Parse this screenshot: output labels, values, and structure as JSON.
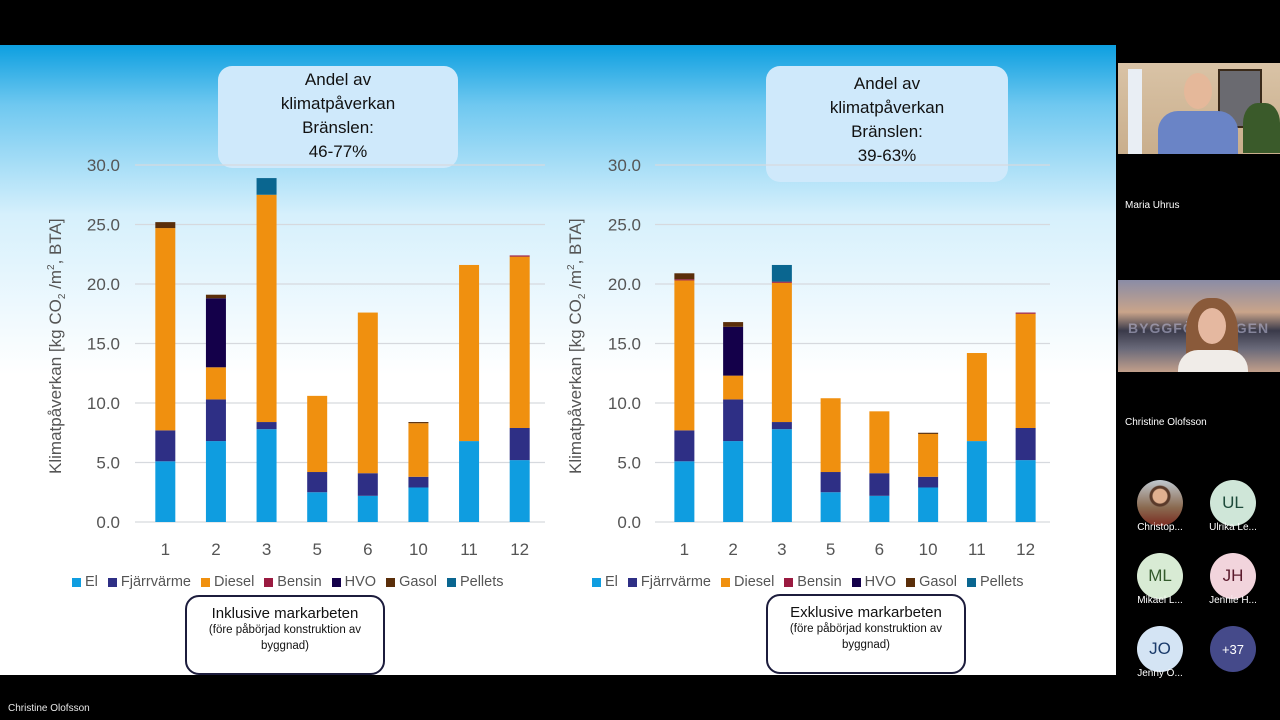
{
  "presenter_name": "Christine Olofsson",
  "legend_colors": {
    "El": "#0f9de0",
    "Fjärrvärme": "#2e2f85",
    "Diesel": "#f0900f",
    "Bensin": "#9a1a40",
    "HVO": "#14004a",
    "Gasol": "#5a2e0a",
    "Pellets": "#0a6690"
  },
  "left_panel": {
    "callout": [
      "Andel av",
      "klimatpåverkan",
      "Bränslen:",
      "46-77%"
    ],
    "note_title": "Inklusive markarbeten",
    "note_sub": [
      "(före påbörjad konstruktion av",
      "byggnad)"
    ]
  },
  "right_panel": {
    "callout": [
      "Andel av",
      "klimatpåverkan",
      "Bränslen:",
      "39-63%"
    ],
    "note_title": "Exklusive markarbeten",
    "note_sub": [
      "(före påbörjad konstruktion av",
      "byggnad)"
    ]
  },
  "chart_data": [
    {
      "type": "bar",
      "stacked": true,
      "title": "Inklusive markarbeten",
      "xlabel": "",
      "ylabel": "Klimatpåverkan [kg CO2 /m2, BTA]",
      "ylim": [
        0,
        30
      ],
      "yticks": [
        "0.0",
        "5.0",
        "10.0",
        "15.0",
        "20.0",
        "25.0",
        "30.0"
      ],
      "grid": true,
      "legend": "bottom",
      "categories": [
        "1",
        "2",
        "3",
        "5",
        "6",
        "10",
        "11",
        "12"
      ],
      "series": [
        {
          "name": "El",
          "values": [
            5.1,
            6.8,
            7.8,
            2.5,
            2.2,
            2.9,
            6.8,
            5.2
          ]
        },
        {
          "name": "Fjärrvärme",
          "values": [
            2.6,
            3.5,
            0.6,
            1.7,
            1.9,
            0.9,
            0,
            2.7
          ]
        },
        {
          "name": "Diesel",
          "values": [
            17.0,
            2.7,
            19.1,
            6.4,
            13.5,
            4.5,
            14.8,
            14.4
          ]
        },
        {
          "name": "Bensin",
          "values": [
            0,
            0,
            0,
            0,
            0,
            0,
            0,
            0.1
          ]
        },
        {
          "name": "HVO",
          "values": [
            0,
            5.8,
            0,
            0,
            0,
            0,
            0,
            0
          ]
        },
        {
          "name": "Gasol",
          "values": [
            0.5,
            0.3,
            0,
            0,
            0,
            0.1,
            0,
            0
          ]
        },
        {
          "name": "Pellets",
          "values": [
            0,
            0,
            1.4,
            0,
            0,
            0,
            0,
            0
          ]
        }
      ]
    },
    {
      "type": "bar",
      "stacked": true,
      "title": "Exklusive markarbeten",
      "xlabel": "",
      "ylabel": "Klimatpåverkan [kg CO2 /m2, BTA]",
      "ylim": [
        0,
        30
      ],
      "yticks": [
        "0.0",
        "5.0",
        "10.0",
        "15.0",
        "20.0",
        "25.0",
        "30.0"
      ],
      "grid": true,
      "legend": "bottom",
      "categories": [
        "1",
        "2",
        "3",
        "5",
        "6",
        "10",
        "11",
        "12"
      ],
      "series": [
        {
          "name": "El",
          "values": [
            5.1,
            6.8,
            7.8,
            2.5,
            2.2,
            2.9,
            6.8,
            5.2
          ]
        },
        {
          "name": "Fjärrvärme",
          "values": [
            2.6,
            3.5,
            0.6,
            1.7,
            1.9,
            0.9,
            0,
            2.7
          ]
        },
        {
          "name": "Diesel",
          "values": [
            12.6,
            2.0,
            11.7,
            6.2,
            5.2,
            3.6,
            7.4,
            9.6
          ]
        },
        {
          "name": "Bensin",
          "values": [
            0.1,
            0,
            0.1,
            0,
            0,
            0,
            0,
            0.1
          ]
        },
        {
          "name": "HVO",
          "values": [
            0,
            4.1,
            0,
            0,
            0,
            0,
            0,
            0
          ]
        },
        {
          "name": "Gasol",
          "values": [
            0.5,
            0.4,
            0,
            0,
            0,
            0.1,
            0,
            0
          ]
        },
        {
          "name": "Pellets",
          "values": [
            0,
            0,
            1.4,
            0,
            0,
            0,
            0,
            0
          ]
        }
      ]
    }
  ],
  "ylabel_parts": {
    "a": "Klimatpåverkan [kg CO",
    "sub1": "2",
    "b": " /m",
    "sup": "2",
    "c": ", BTA]"
  },
  "participants": {
    "video_tiles": [
      {
        "name": "Maria Uhrus"
      },
      {
        "name": "Christine Olofsson",
        "background_text": "BYGGFÖRETAGEN"
      }
    ],
    "avatars": [
      {
        "initials": "",
        "name": "Christop...",
        "bg": "#8a6a50",
        "fg": "#ffffff"
      },
      {
        "initials": "UL",
        "name": "Ulrika Le...",
        "bg": "#cfe6d8",
        "fg": "#1d4a3a"
      },
      {
        "initials": "ML",
        "name": "Mikael L...",
        "bg": "#d8ebd4",
        "fg": "#345a2c"
      },
      {
        "initials": "JH",
        "name": "Jennie H...",
        "bg": "#f2d4dc",
        "fg": "#5a1a2c"
      },
      {
        "initials": "JO",
        "name": "Jenny O...",
        "bg": "#d4e4f4",
        "fg": "#1a3a6a"
      },
      {
        "initials": "+37",
        "name": "",
        "bg": "#454a8a",
        "fg": "#ffffff"
      }
    ]
  }
}
